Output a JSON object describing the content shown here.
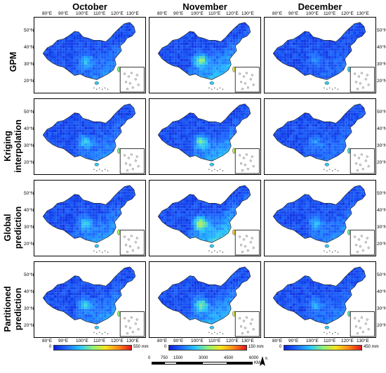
{
  "columns": [
    "October",
    "November",
    "December"
  ],
  "rows": [
    [
      "GPM"
    ],
    [
      "Kriging",
      "interpolation"
    ],
    [
      "Global",
      "prediction"
    ],
    [
      "Partitioned",
      "prediction"
    ]
  ],
  "lon_ticks": [
    "80°E",
    "90°E",
    "100°E",
    "110°E",
    "120°E",
    "130°E"
  ],
  "lat_ticks": [
    "50°N",
    "40°N",
    "30°N",
    "20°N"
  ],
  "colorbars": [
    {
      "min": "0",
      "max": "550 mm"
    },
    {
      "min": "0",
      "max": "150 mm"
    },
    {
      "min": "0",
      "max": "450 mm"
    }
  ],
  "colors": {
    "low": "#1a2ee0",
    "mid_low": "#2a73ff",
    "mid": "#33c8ff",
    "mid_high": "#7ee86a",
    "high_mid": "#f0e02a",
    "high": "#e81c1c",
    "ramp": [
      "#0a1fd9",
      "#1f6bff",
      "#27c4ff",
      "#8ef07a",
      "#f5e51c",
      "#ff8a1a",
      "#e2151b"
    ]
  },
  "intensity": [
    [
      0.22,
      0.38,
      0.12
    ],
    [
      0.22,
      0.33,
      0.14
    ],
    [
      0.28,
      0.45,
      0.2
    ],
    [
      0.25,
      0.36,
      0.17
    ]
  ],
  "scale_bar": {
    "labels": [
      "0",
      "750",
      "1500",
      "3000",
      "4500",
      "6000"
    ],
    "unit": "KM"
  },
  "north_arrow": "N"
}
